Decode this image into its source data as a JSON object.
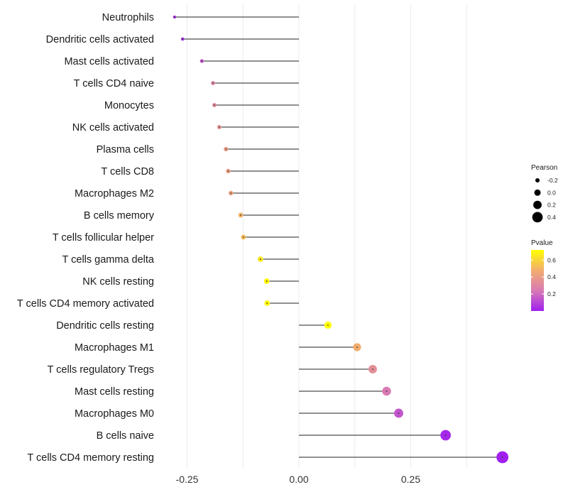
{
  "chart_data": {
    "type": "lollipop",
    "title": "",
    "xlabel": "",
    "ylabel": "",
    "xlim": [
      -0.3,
      0.48
    ],
    "x_ticks": [
      -0.25,
      0.0,
      0.25
    ],
    "x_tick_labels": [
      "-0.25",
      "0.00",
      "0.25"
    ],
    "grid": true,
    "categories": [
      "Neutrophils",
      "Dendritic cells activated",
      "Mast cells activated",
      "T cells CD4 naive",
      "Monocytes",
      "NK cells activated",
      "Plasma cells",
      "T cells CD8",
      "Macrophages M2",
      "B cells memory",
      "T cells follicular helper",
      "T cells gamma delta",
      "NK cells resting",
      "T cells CD4 memory activated",
      "Dendritic cells resting",
      "Macrophages M1",
      "T cells regulatory  Tregs ",
      "Mast cells resting",
      "Macrophages M0",
      "B cells naive",
      "T cells CD4 memory resting"
    ],
    "pearson": [
      -0.278,
      -0.26,
      -0.217,
      -0.192,
      -0.189,
      -0.178,
      -0.163,
      -0.158,
      -0.152,
      -0.13,
      -0.124,
      -0.086,
      -0.072,
      -0.071,
      0.065,
      0.13,
      0.165,
      0.196,
      0.223,
      0.328,
      0.455
    ],
    "pvalue": [
      0.02,
      0.04,
      0.15,
      0.3,
      0.32,
      0.36,
      0.4,
      0.41,
      0.43,
      0.5,
      0.52,
      0.65,
      0.7,
      0.7,
      0.72,
      0.48,
      0.34,
      0.24,
      0.14,
      0.02,
      0.0
    ],
    "legend_size": {
      "title": "Pearson",
      "values": [
        -0.2,
        0.0,
        0.2,
        0.4
      ],
      "labels": [
        "-0.2",
        "0.0",
        "0.2",
        "0.4"
      ]
    },
    "legend_color": {
      "title": "Pvalue",
      "range": [
        0.0,
        0.72
      ],
      "ticks": [
        0.2,
        0.4,
        0.6
      ],
      "tick_labels": [
        "0.2",
        "0.4",
        "0.6"
      ],
      "colors": [
        "#a020f0",
        "#d87ab4",
        "#f2ad6f",
        "#ffff00"
      ]
    },
    "stem_color": "#222222",
    "grid_color": "#ececec",
    "legend_position": "right"
  }
}
